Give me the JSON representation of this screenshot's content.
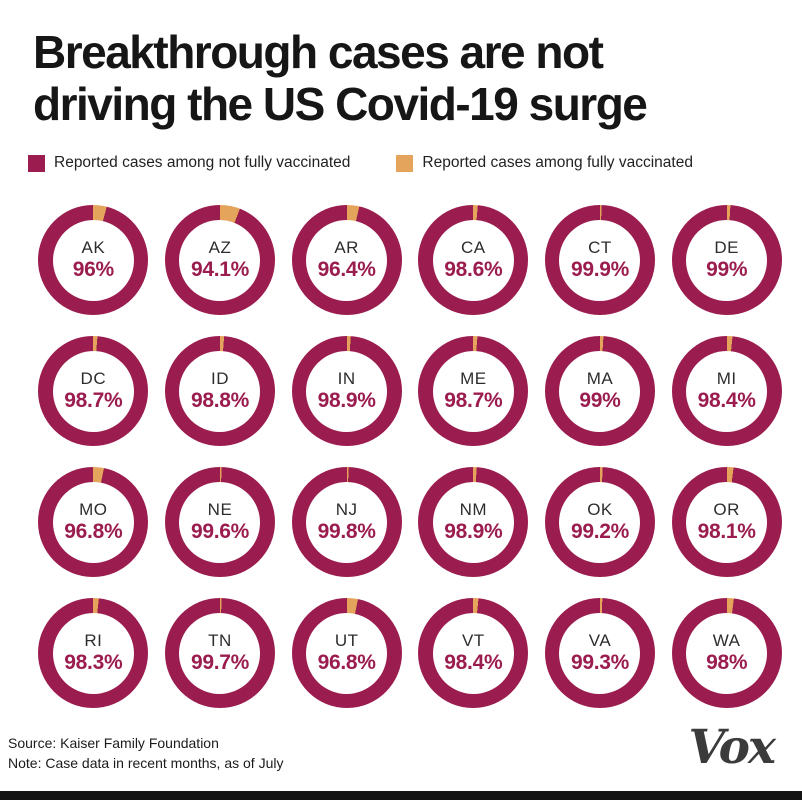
{
  "title": {
    "line1": "Breakthrough cases are not",
    "line2": "driving the US Covid-19 surge"
  },
  "legend": [
    {
      "label": "Reported cases among not fully vaccinated",
      "color": "#9B1C4E"
    },
    {
      "label": "Reported cases among fully vaccinated",
      "color": "#E5A45C"
    }
  ],
  "colors": {
    "not_fully_vaccinated": "#9B1C4E",
    "fully_vaccinated": "#E5A45C",
    "pct_text": "#9B1C4E"
  },
  "chart_data": {
    "type": "pie",
    "subtype": "donut_small_multiples",
    "unit": "%",
    "grid": {
      "rows": 4,
      "cols": 6
    },
    "series_labels": [
      "Reported cases among not fully vaccinated",
      "Reported cases among fully vaccinated"
    ],
    "states": [
      {
        "abbr": "AK",
        "not_fully_vaccinated": 96,
        "fully_vaccinated": 4,
        "display": "96%"
      },
      {
        "abbr": "AZ",
        "not_fully_vaccinated": 94.1,
        "fully_vaccinated": 5.9,
        "display": "94.1%"
      },
      {
        "abbr": "AR",
        "not_fully_vaccinated": 96.4,
        "fully_vaccinated": 3.6,
        "display": "96.4%"
      },
      {
        "abbr": "CA",
        "not_fully_vaccinated": 98.6,
        "fully_vaccinated": 1.4,
        "display": "98.6%"
      },
      {
        "abbr": "CT",
        "not_fully_vaccinated": 99.9,
        "fully_vaccinated": 0.1,
        "display": "99.9%"
      },
      {
        "abbr": "DE",
        "not_fully_vaccinated": 99,
        "fully_vaccinated": 1,
        "display": "99%"
      },
      {
        "abbr": "DC",
        "not_fully_vaccinated": 98.7,
        "fully_vaccinated": 1.3,
        "display": "98.7%"
      },
      {
        "abbr": "ID",
        "not_fully_vaccinated": 98.8,
        "fully_vaccinated": 1.2,
        "display": "98.8%"
      },
      {
        "abbr": "IN",
        "not_fully_vaccinated": 98.9,
        "fully_vaccinated": 1.1,
        "display": "98.9%"
      },
      {
        "abbr": "ME",
        "not_fully_vaccinated": 98.7,
        "fully_vaccinated": 1.3,
        "display": "98.7%"
      },
      {
        "abbr": "MA",
        "not_fully_vaccinated": 99,
        "fully_vaccinated": 1,
        "display": "99%"
      },
      {
        "abbr": "MI",
        "not_fully_vaccinated": 98.4,
        "fully_vaccinated": 1.6,
        "display": "98.4%"
      },
      {
        "abbr": "MO",
        "not_fully_vaccinated": 96.8,
        "fully_vaccinated": 3.2,
        "display": "96.8%"
      },
      {
        "abbr": "NE",
        "not_fully_vaccinated": 99.6,
        "fully_vaccinated": 0.4,
        "display": "99.6%"
      },
      {
        "abbr": "NJ",
        "not_fully_vaccinated": 99.8,
        "fully_vaccinated": 0.2,
        "display": "99.8%"
      },
      {
        "abbr": "NM",
        "not_fully_vaccinated": 98.9,
        "fully_vaccinated": 1.1,
        "display": "98.9%"
      },
      {
        "abbr": "OK",
        "not_fully_vaccinated": 99.2,
        "fully_vaccinated": 0.8,
        "display": "99.2%"
      },
      {
        "abbr": "OR",
        "not_fully_vaccinated": 98.1,
        "fully_vaccinated": 1.9,
        "display": "98.1%"
      },
      {
        "abbr": "RI",
        "not_fully_vaccinated": 98.3,
        "fully_vaccinated": 1.7,
        "display": "98.3%"
      },
      {
        "abbr": "TN",
        "not_fully_vaccinated": 99.7,
        "fully_vaccinated": 0.3,
        "display": "99.7%"
      },
      {
        "abbr": "UT",
        "not_fully_vaccinated": 96.8,
        "fully_vaccinated": 3.2,
        "display": "96.8%"
      },
      {
        "abbr": "VT",
        "not_fully_vaccinated": 98.4,
        "fully_vaccinated": 1.6,
        "display": "98.4%"
      },
      {
        "abbr": "VA",
        "not_fully_vaccinated": 99.3,
        "fully_vaccinated": 0.7,
        "display": "99.3%"
      },
      {
        "abbr": "WA",
        "not_fully_vaccinated": 98,
        "fully_vaccinated": 2,
        "display": "98%"
      }
    ]
  },
  "footer": {
    "source": "Source: Kaiser Family Foundation",
    "note": "Note: Case data in recent months, as of July",
    "logo": "Vox"
  }
}
